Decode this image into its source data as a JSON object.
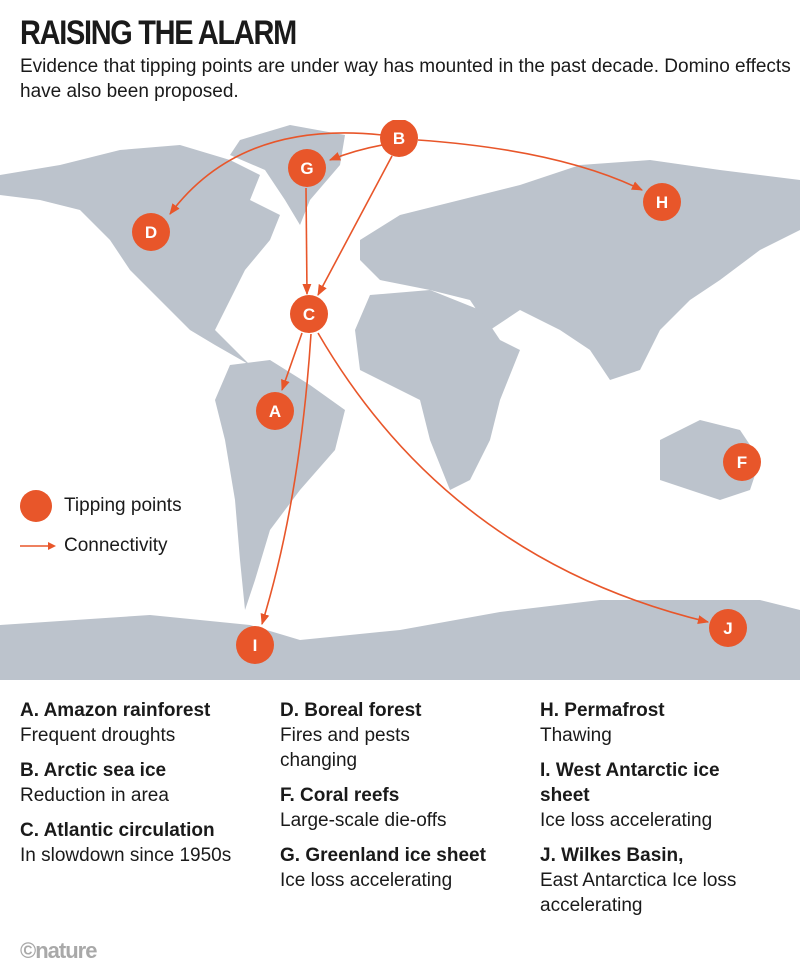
{
  "header": {
    "title": "RAISING THE ALARM",
    "subtitle": "Evidence that tipping points are under way has mounted in the past decade. Domino effects have also been proposed."
  },
  "colors": {
    "marker": "#e8562a",
    "land": "#bcc3cc"
  },
  "markers": [
    "A",
    "B",
    "C",
    "D",
    "F",
    "G",
    "H",
    "I",
    "J"
  ],
  "legend": {
    "tipping": "Tipping points",
    "connectivity": "Connectivity"
  },
  "items": [
    {
      "title": "A. Amazon rainforest",
      "desc": "Frequent droughts"
    },
    {
      "title": "B. Arctic sea ice",
      "desc": "Reduction in area"
    },
    {
      "title": "C. Atlantic circulation",
      "desc": "In slowdown since 1950s"
    },
    {
      "title": "D. Boreal forest",
      "desc": "Fires and pests changing"
    },
    {
      "title": "F. Coral reefs",
      "desc": "Large-scale die-offs"
    },
    {
      "title": "G. Greenland ice sheet",
      "desc": "Ice loss accelerating"
    },
    {
      "title": "H. Permafrost",
      "desc": "Thawing"
    },
    {
      "title": "I. West Antarctic ice sheet",
      "desc": "Ice loss accelerating"
    },
    {
      "title": "J. Wilkes Basin,",
      "desc": "East Antarctica Ice loss accelerating"
    }
  ],
  "credit": "©nature"
}
